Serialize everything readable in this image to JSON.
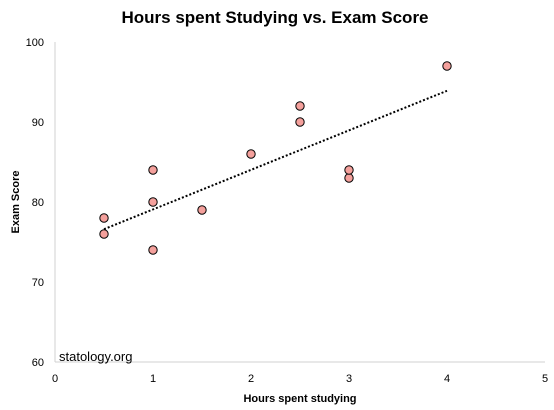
{
  "chart_data": {
    "type": "scatter",
    "title": "Hours spent Studying vs. Exam Score",
    "xlabel": "Hours spent studying",
    "ylabel": "Exam Score",
    "xlim": [
      0,
      5
    ],
    "ylim": [
      60,
      100
    ],
    "x_ticks": [
      0,
      1,
      2,
      3,
      4,
      5
    ],
    "y_ticks": [
      60,
      70,
      80,
      90,
      100
    ],
    "grid": false,
    "legend": "none",
    "points": [
      {
        "x": 0.5,
        "y": 76
      },
      {
        "x": 0.5,
        "y": 78
      },
      {
        "x": 1,
        "y": 74
      },
      {
        "x": 1,
        "y": 80
      },
      {
        "x": 1,
        "y": 84
      },
      {
        "x": 1.5,
        "y": 79
      },
      {
        "x": 2,
        "y": 86
      },
      {
        "x": 2.5,
        "y": 90
      },
      {
        "x": 2.5,
        "y": 92
      },
      {
        "x": 3,
        "y": 83
      },
      {
        "x": 3,
        "y": 84
      },
      {
        "x": 4,
        "y": 97
      }
    ],
    "trendline": {
      "style": "dotted",
      "from": {
        "x": 0.5,
        "y": 76.6
      },
      "to": {
        "x": 4,
        "y": 93.9
      }
    },
    "marker_fill": "#F4A09C",
    "marker_stroke": "#000000",
    "trendline_color": "#000000"
  },
  "watermark": "statology.org"
}
